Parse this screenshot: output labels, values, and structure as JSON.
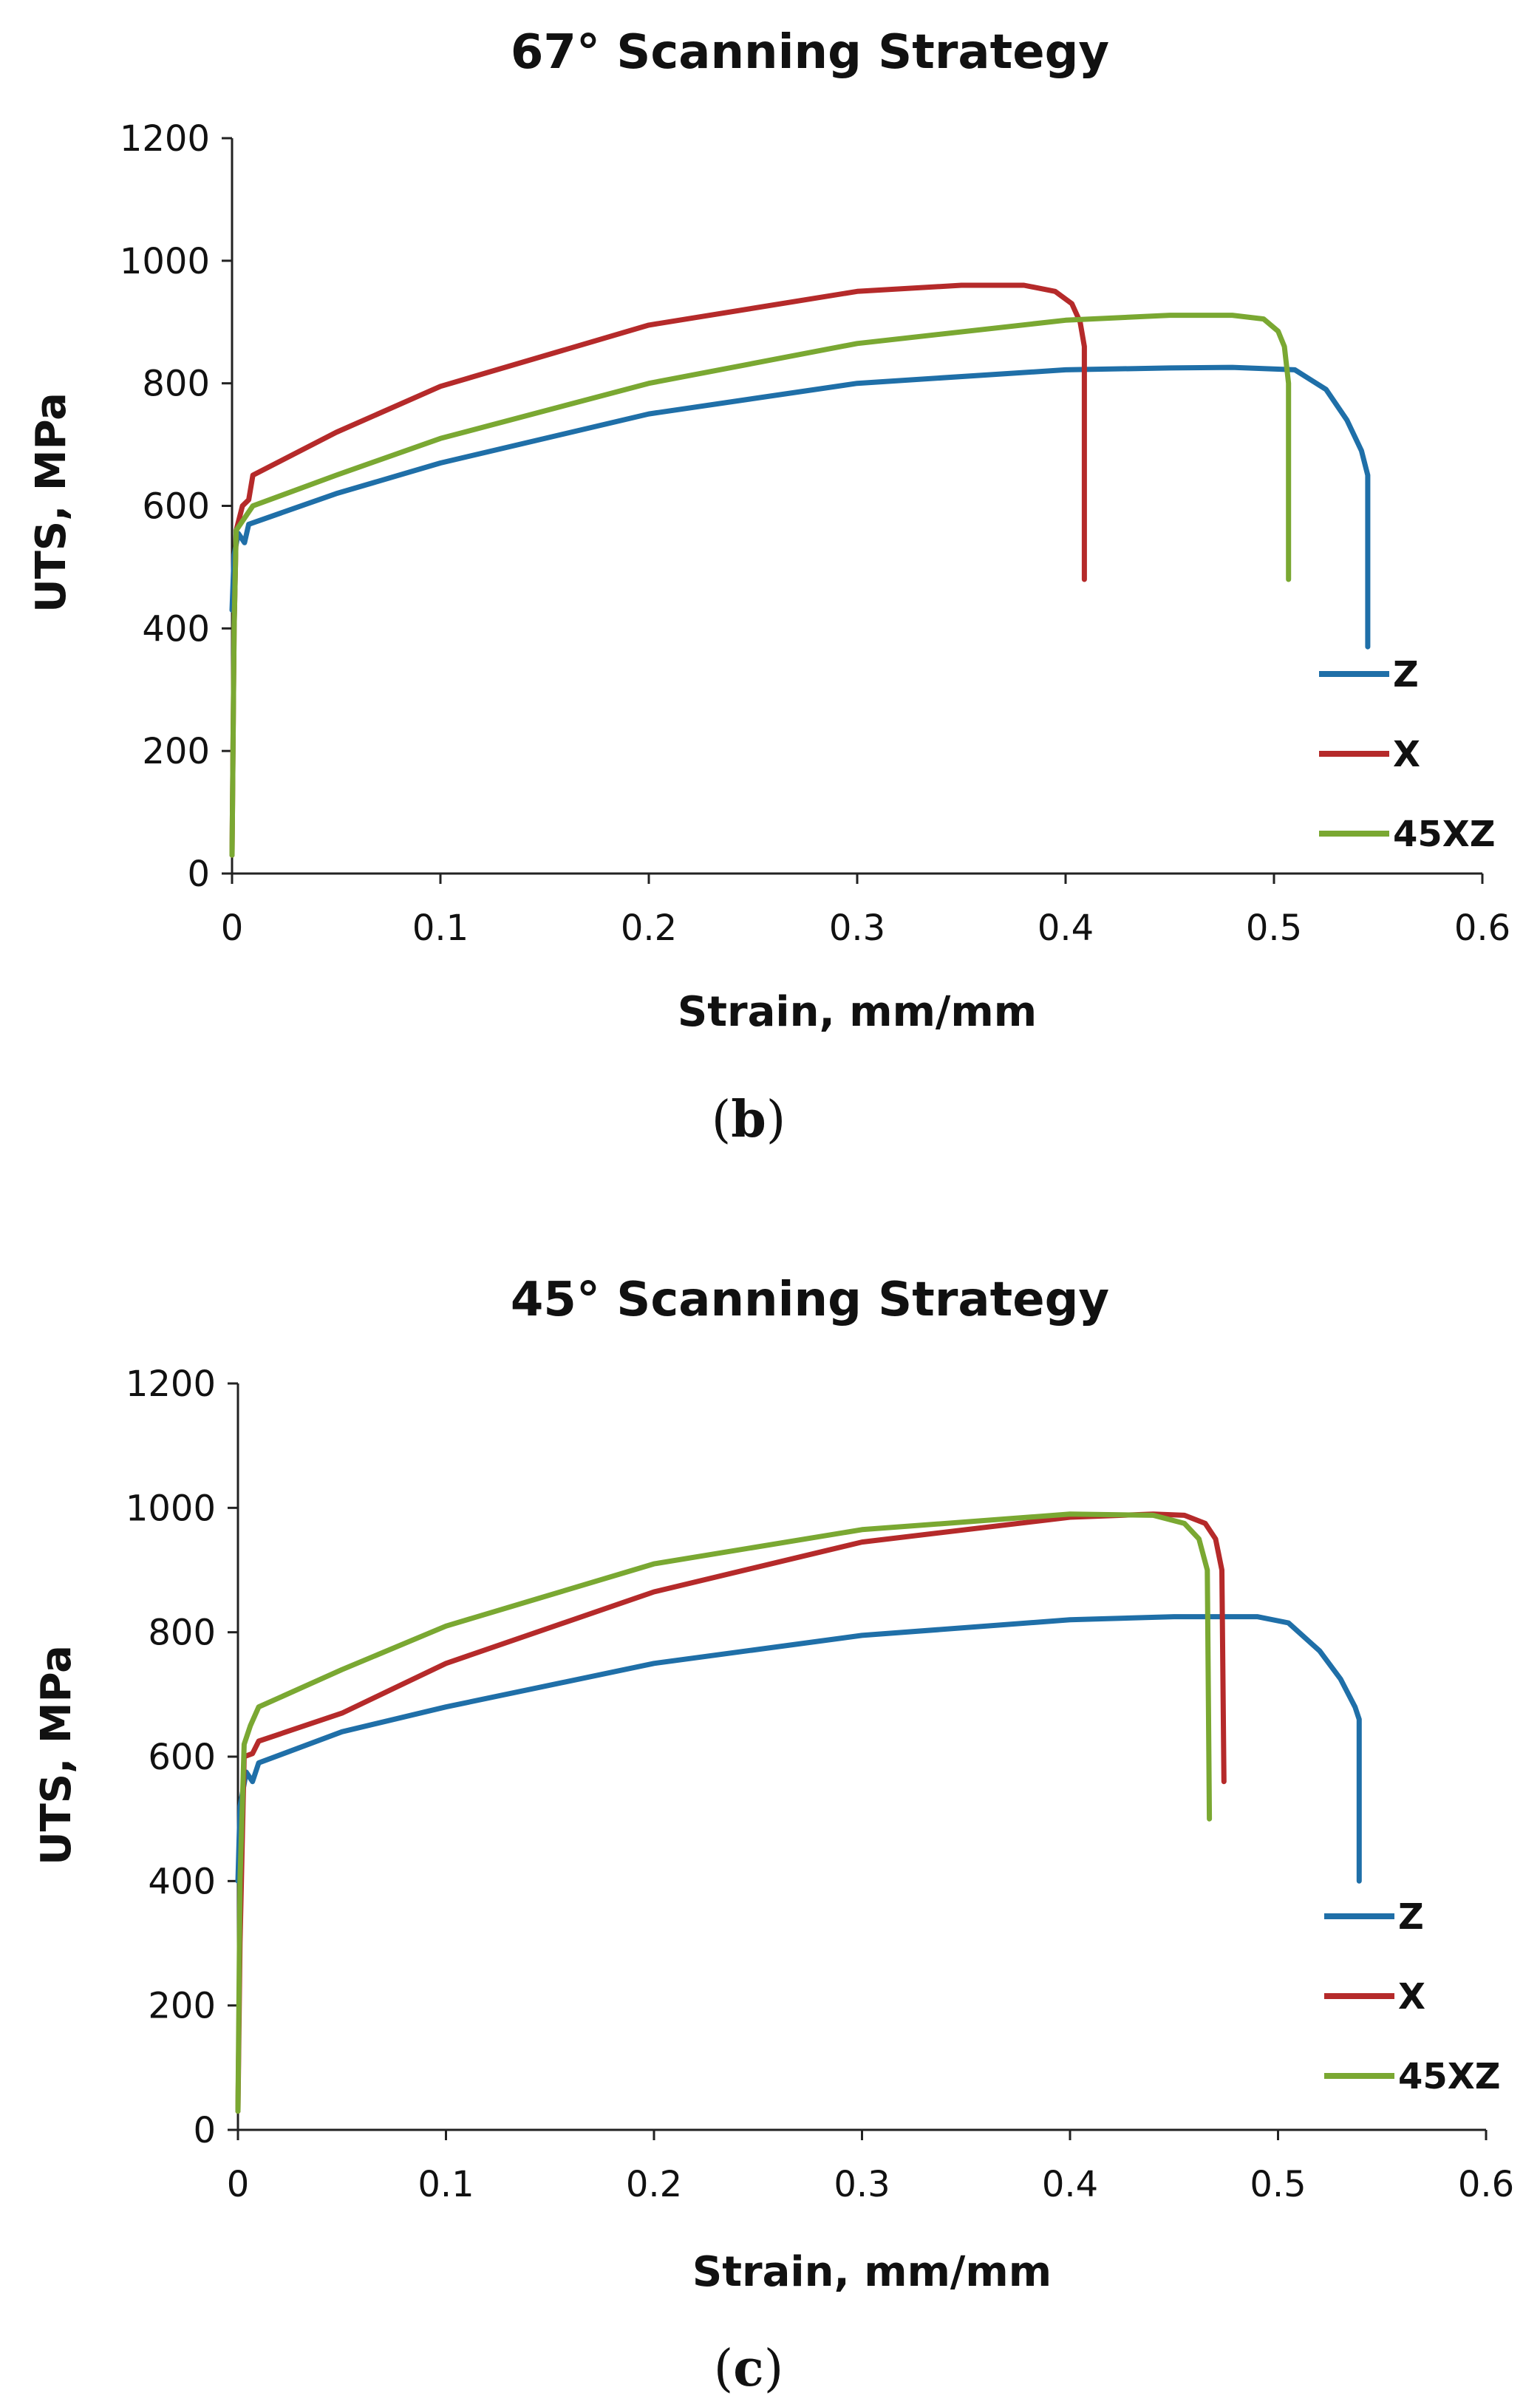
{
  "chart_data": [
    {
      "type": "line",
      "title": "67° Scanning Strategy",
      "xlabel": "Strain, mm/mm",
      "ylabel": "UTS, MPa",
      "xlim": [
        0,
        0.6
      ],
      "ylim": [
        0,
        1200
      ],
      "x_ticks": [
        "0",
        "0.1",
        "0.2",
        "0.3",
        "0.4",
        "0.5",
        "0.6"
      ],
      "y_ticks": [
        "0",
        "200",
        "400",
        "600",
        "800",
        "1000",
        "1200"
      ],
      "legend_position": "bottom-right",
      "caption_open": "(",
      "caption_letter": "b",
      "caption_close": ")",
      "series": [
        {
          "name": "Z",
          "color": "#1f6fa8",
          "points": [
            [
              0.0,
              430
            ],
            [
              0.001,
              520
            ],
            [
              0.003,
              555
            ],
            [
              0.006,
              540
            ],
            [
              0.008,
              570
            ],
            [
              0.05,
              620
            ],
            [
              0.1,
              670
            ],
            [
              0.2,
              750
            ],
            [
              0.3,
              800
            ],
            [
              0.4,
              822
            ],
            [
              0.45,
              825
            ],
            [
              0.48,
              826
            ],
            [
              0.51,
              822
            ],
            [
              0.525,
              790
            ],
            [
              0.535,
              740
            ],
            [
              0.542,
              690
            ],
            [
              0.545,
              650
            ],
            [
              0.545,
              370
            ]
          ]
        },
        {
          "name": "X",
          "color": "#b52a2a",
          "points": [
            [
              0.0,
              30
            ],
            [
              0.001,
              400
            ],
            [
              0.002,
              560
            ],
            [
              0.005,
              600
            ],
            [
              0.008,
              610
            ],
            [
              0.01,
              650
            ],
            [
              0.05,
              720
            ],
            [
              0.1,
              795
            ],
            [
              0.2,
              895
            ],
            [
              0.3,
              950
            ],
            [
              0.35,
              960
            ],
            [
              0.38,
              960
            ],
            [
              0.395,
              950
            ],
            [
              0.403,
              930
            ],
            [
              0.407,
              900
            ],
            [
              0.409,
              860
            ],
            [
              0.409,
              480
            ]
          ]
        },
        {
          "name": "45XZ",
          "color": "#7aa832",
          "points": [
            [
              0.0,
              30
            ],
            [
              0.001,
              400
            ],
            [
              0.002,
              560
            ],
            [
              0.005,
              575
            ],
            [
              0.01,
              600
            ],
            [
              0.05,
              650
            ],
            [
              0.1,
              710
            ],
            [
              0.2,
              800
            ],
            [
              0.3,
              865
            ],
            [
              0.4,
              903
            ],
            [
              0.45,
              911
            ],
            [
              0.48,
              911
            ],
            [
              0.495,
              905
            ],
            [
              0.502,
              885
            ],
            [
              0.505,
              860
            ],
            [
              0.507,
              800
            ],
            [
              0.507,
              480
            ]
          ]
        }
      ]
    },
    {
      "type": "line",
      "title": "45° Scanning Strategy",
      "xlabel": "Strain, mm/mm",
      "ylabel": "UTS, MPa",
      "xlim": [
        0,
        0.6
      ],
      "ylim": [
        0,
        1200
      ],
      "x_ticks": [
        "0",
        "0.1",
        "0.2",
        "0.3",
        "0.4",
        "0.5",
        "0.6"
      ],
      "y_ticks": [
        "0",
        "200",
        "400",
        "600",
        "800",
        "1000",
        "1200"
      ],
      "legend_position": "bottom-right",
      "caption_open": "(",
      "caption_letter": "c",
      "caption_close": ")",
      "series": [
        {
          "name": "Z",
          "color": "#1f6fa8",
          "points": [
            [
              0.0,
              400
            ],
            [
              0.001,
              520
            ],
            [
              0.004,
              575
            ],
            [
              0.007,
              560
            ],
            [
              0.01,
              590
            ],
            [
              0.05,
              640
            ],
            [
              0.1,
              680
            ],
            [
              0.2,
              750
            ],
            [
              0.3,
              795
            ],
            [
              0.4,
              820
            ],
            [
              0.45,
              825
            ],
            [
              0.49,
              825
            ],
            [
              0.505,
              815
            ],
            [
              0.52,
              770
            ],
            [
              0.53,
              725
            ],
            [
              0.537,
              680
            ],
            [
              0.539,
              660
            ],
            [
              0.539,
              400
            ]
          ]
        },
        {
          "name": "X",
          "color": "#b52a2a",
          "points": [
            [
              0.0,
              30
            ],
            [
              0.001,
              300
            ],
            [
              0.003,
              600
            ],
            [
              0.007,
              605
            ],
            [
              0.01,
              625
            ],
            [
              0.05,
              670
            ],
            [
              0.1,
              750
            ],
            [
              0.2,
              865
            ],
            [
              0.3,
              945
            ],
            [
              0.4,
              985
            ],
            [
              0.44,
              990
            ],
            [
              0.455,
              988
            ],
            [
              0.465,
              975
            ],
            [
              0.47,
              950
            ],
            [
              0.473,
              900
            ],
            [
              0.474,
              560
            ]
          ]
        },
        {
          "name": "45XZ",
          "color": "#7aa832",
          "points": [
            [
              0.0,
              30
            ],
            [
              0.001,
              400
            ],
            [
              0.003,
              620
            ],
            [
              0.006,
              650
            ],
            [
              0.01,
              680
            ],
            [
              0.05,
              740
            ],
            [
              0.1,
              810
            ],
            [
              0.2,
              910
            ],
            [
              0.3,
              965
            ],
            [
              0.4,
              990
            ],
            [
              0.44,
              988
            ],
            [
              0.455,
              975
            ],
            [
              0.462,
              950
            ],
            [
              0.466,
              900
            ],
            [
              0.467,
              500
            ]
          ]
        }
      ]
    }
  ]
}
